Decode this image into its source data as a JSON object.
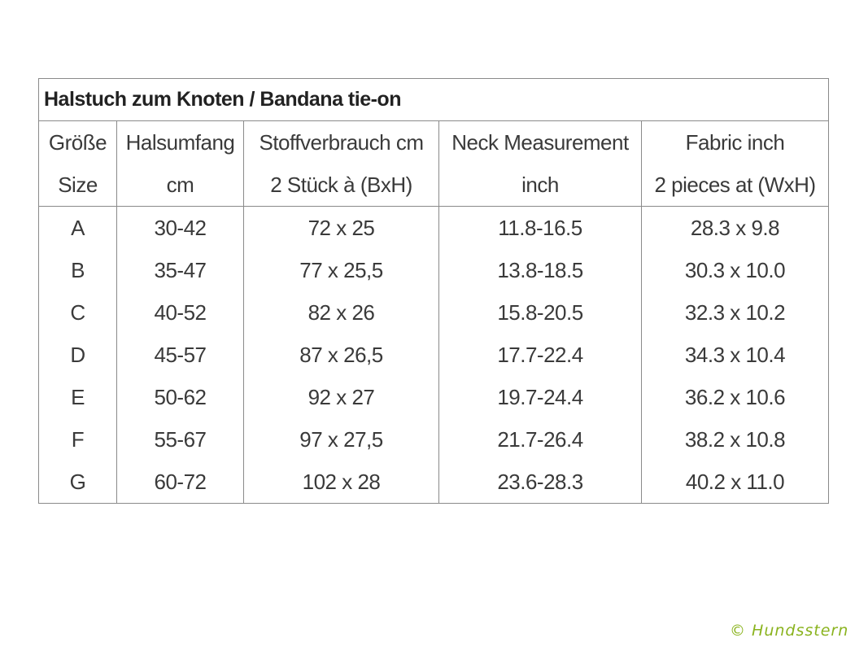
{
  "table": {
    "title": "Halstuch zum Knoten / Bandana tie-on",
    "headers": [
      [
        "Größe",
        "Size"
      ],
      [
        "Halsumfang",
        "cm"
      ],
      [
        "Stoffverbrauch cm",
        "2 Stück à (BxH)"
      ],
      [
        "Neck Measurement",
        "inch"
      ],
      [
        "Fabric inch",
        "2 pieces at (WxH)"
      ]
    ],
    "rows": [
      [
        "A",
        "30-42",
        "72 x 25",
        "11.8-16.5",
        "28.3 x 9.8"
      ],
      [
        "B",
        "35-47",
        "77 x 25,5",
        "13.8-18.5",
        "30.3 x 10.0"
      ],
      [
        "C",
        "40-52",
        "82 x 26",
        "15.8-20.5",
        "32.3 x 10.2"
      ],
      [
        "D",
        "45-57",
        "87 x 26,5",
        "17.7-22.4",
        "34.3 x 10.4"
      ],
      [
        "E",
        "50-62",
        "92 x 27",
        "19.7-24.4",
        "36.2 x 10.6"
      ],
      [
        "F",
        "55-67",
        "97 x 27,5",
        "21.7-26.4",
        "38.2 x 10.8"
      ],
      [
        "G",
        "60-72",
        "102 x 28",
        "23.6-28.3",
        "40.2 x 11.0"
      ]
    ]
  },
  "watermark": "© Hundsstern",
  "colors": {
    "watermark": "#8ab31e",
    "border": "#8a8a8a",
    "text": "#3a3a3a"
  }
}
